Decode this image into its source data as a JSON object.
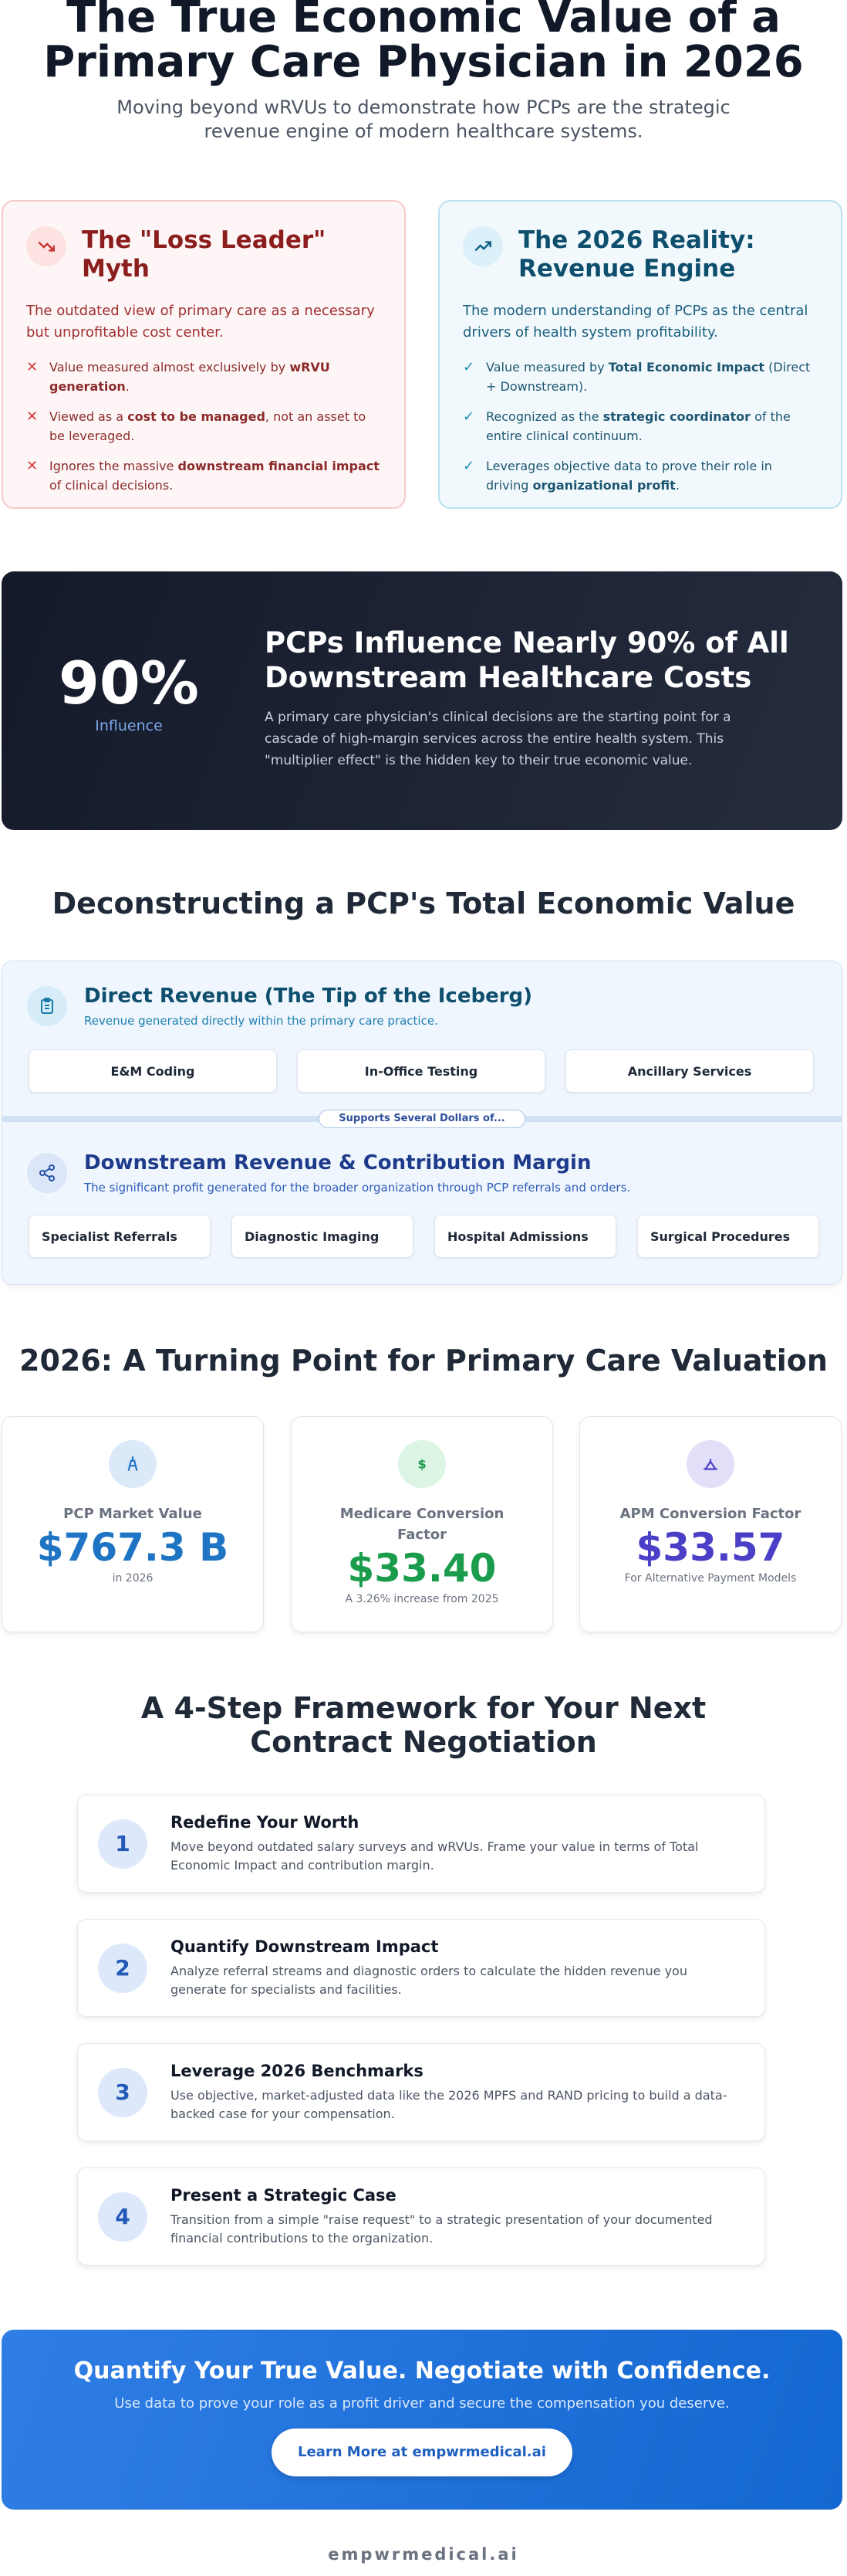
{
  "header": {
    "title": "The True Economic Value of a Primary Care Physician in 2026",
    "subtitle": "Moving beyond wRVUs to demonstrate how PCPs are the strategic revenue engine of modern healthcare systems."
  },
  "comparison": [
    {
      "title": "The \"Loss Leader\" Myth",
      "description": "The outdated view of primary care as a necessary but unprofitable cost center.",
      "points": [
        [
          "Value measured almost exclusively by ",
          "wRVU generation",
          "."
        ],
        [
          "Viewed as a ",
          "cost to be managed",
          ", not an asset to be leveraged."
        ],
        [
          "Ignores the massive ",
          "downstream financial impact",
          " of clinical decisions."
        ]
      ]
    },
    {
      "title": "The 2026 Reality: Revenue Engine",
      "description": "The modern understanding of PCPs as the central drivers of health system profitability.",
      "points": [
        [
          "Value measured by ",
          "Total Economic Impact",
          " (Direct + Downstream)."
        ],
        [
          "Recognized as the ",
          "strategic coordinator",
          " of the entire clinical continuum."
        ],
        [
          "Leverages objective data to prove their role in driving ",
          "organizational profit",
          "."
        ]
      ]
    }
  ],
  "highlight": {
    "stat": "90%",
    "stat_label": "Influence",
    "title": "PCPs Influence Nearly 90% of All Downstream Healthcare Costs",
    "text": "A primary care physician's clinical decisions are the starting point for a cascade of high-margin services across the entire health system. This \"multiplier effect\" is the hidden key to their true economic value."
  },
  "value_section": {
    "title": "Deconstructing a PCP's Total Economic Value",
    "direct": {
      "title": "Direct Revenue (The Tip of the Iceberg)",
      "subtitle": "Revenue generated directly within the primary care practice.",
      "items": [
        "E&M Coding",
        "In-Office Testing",
        "Ancillary Services"
      ]
    },
    "connector": "Supports Several Dollars of...",
    "downstream": {
      "title": "Downstream Revenue & Contribution Margin",
      "subtitle": "The significant profit generated for the broader organization through PCP referrals and orders.",
      "items": [
        "Specialist Referrals",
        "Diagnostic Imaging",
        "Hospital Admissions",
        "Surgical Procedures"
      ]
    }
  },
  "turning_point": {
    "title": "2026: A Turning Point for Primary Care Valuation",
    "cards": [
      {
        "label": "PCP Market Value",
        "value": "$767.3 B",
        "note": "in 2026"
      },
      {
        "label": "Medicare Conversion Factor",
        "value": "$33.40",
        "note": "A 3.26% increase from 2025"
      },
      {
        "label": "APM Conversion Factor",
        "value": "$33.57",
        "note": "For Alternative Payment Models"
      }
    ]
  },
  "framework": {
    "title": "A 4-Step Framework for Your Next Contract Negotiation",
    "steps": [
      {
        "number": "1",
        "title": "Redefine Your Worth",
        "text": "Move beyond outdated salary surveys and wRVUs. Frame your value in terms of Total Economic Impact and contribution margin."
      },
      {
        "number": "2",
        "title": "Quantify Downstream Impact",
        "text": "Analyze referral streams and diagnostic orders to calculate the hidden revenue you generate for specialists and facilities."
      },
      {
        "number": "3",
        "title": "Leverage 2026 Benchmarks",
        "text": "Use objective, market-adjusted data like the 2026 MPFS and RAND pricing to build a data-backed case for your compensation."
      },
      {
        "number": "4",
        "title": "Present a Strategic Case",
        "text": "Transition from a simple \"raise request\" to a strategic presentation of your documented financial contributions to the organization."
      }
    ]
  },
  "cta": {
    "title": "Quantify Your True Value. Negotiate with Confidence.",
    "text": "Use data to prove your role as a profit driver and secure the compensation you deserve.",
    "button": "Learn More at empwrmedical.ai"
  },
  "footer": "empwrmedical.ai"
}
